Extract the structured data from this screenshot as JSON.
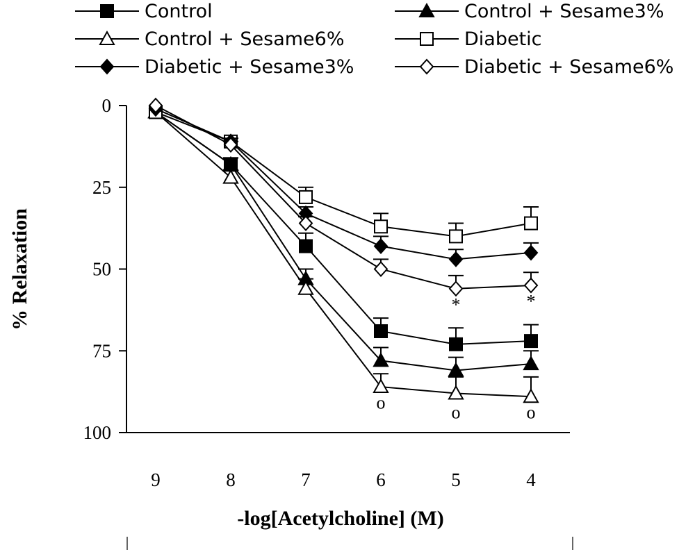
{
  "chart_data": {
    "type": "line",
    "title": "",
    "xlabel": "-log[Acetylcholine] (M)",
    "ylabel": "% Relaxation",
    "x": [
      9,
      8,
      7,
      6,
      5,
      4
    ],
    "xticks": [
      "9",
      "8",
      "7",
      "6",
      "5",
      "4"
    ],
    "yticks": [
      "0",
      "25",
      "50",
      "75",
      "100"
    ],
    "ylim": [
      0,
      100
    ],
    "y_inverted": true,
    "legend_position": "top",
    "series": [
      {
        "name": "Control",
        "marker": "square",
        "filled": true,
        "values": [
          2,
          18,
          43,
          69,
          73,
          72
        ],
        "errors": [
          0,
          2,
          4,
          4,
          5,
          5
        ]
      },
      {
        "name": "Control + Sesame3%",
        "marker": "triangle",
        "filled": true,
        "values": [
          2,
          18,
          53,
          78,
          81,
          79
        ],
        "errors": [
          0,
          2,
          3,
          4,
          4,
          4
        ]
      },
      {
        "name": "Control + Sesame6%",
        "marker": "triangle",
        "filled": false,
        "values": [
          2,
          22,
          56,
          86,
          88,
          89
        ],
        "errors": [
          0,
          2,
          3,
          4,
          5,
          6
        ]
      },
      {
        "name": "Diabetic",
        "marker": "square",
        "filled": false,
        "values": [
          2,
          11,
          28,
          37,
          40,
          36
        ],
        "errors": [
          0,
          1,
          3,
          4,
          4,
          5
        ]
      },
      {
        "name": "Diabetic + Sesame3%",
        "marker": "diamond",
        "filled": true,
        "values": [
          1,
          11,
          33,
          43,
          47,
          45
        ],
        "errors": [
          0,
          1,
          2,
          3,
          3,
          3
        ]
      },
      {
        "name": "Diabetic + Sesame6%",
        "marker": "diamond",
        "filled": false,
        "values": [
          0,
          12,
          36,
          50,
          56,
          55
        ],
        "errors": [
          0,
          1,
          2,
          3,
          4,
          4
        ]
      }
    ],
    "annotations": [
      {
        "text": "*",
        "x": 5,
        "y": 61
      },
      {
        "text": "*",
        "x": 4,
        "y": 60
      },
      {
        "text": "o",
        "x": 6,
        "y": 91
      },
      {
        "text": "o",
        "x": 5,
        "y": 94
      },
      {
        "text": "o",
        "x": 4,
        "y": 94
      }
    ]
  }
}
